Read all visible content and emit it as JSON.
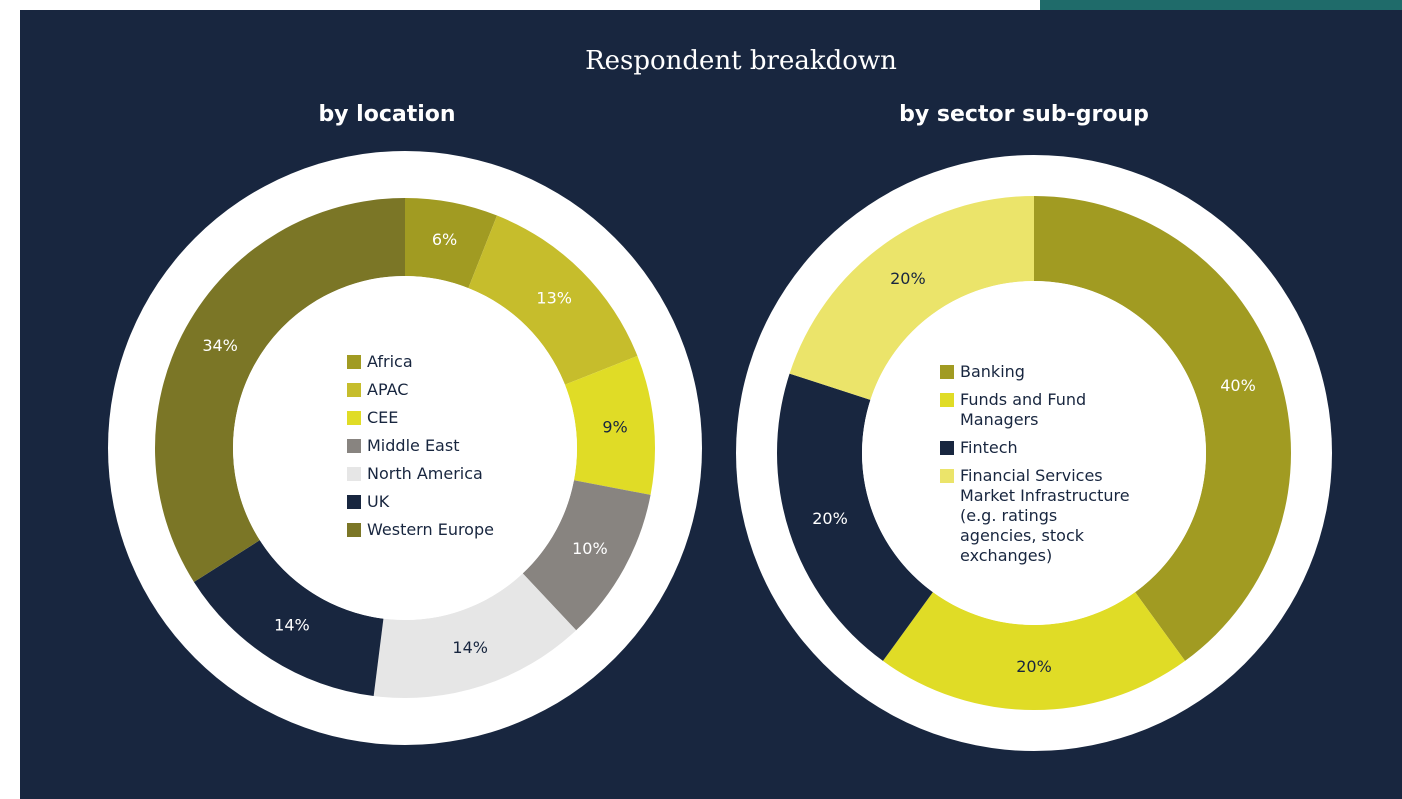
{
  "title": "Respondent breakdown",
  "chart_data": [
    {
      "type": "pie",
      "title": "by location",
      "categories": [
        "Africa",
        "APAC",
        "CEE",
        "Middle East",
        "North America",
        "UK",
        "Western Europe"
      ],
      "values": [
        6,
        13,
        9,
        10,
        14,
        14,
        34
      ],
      "value_labels": [
        "6%",
        "13%",
        "9%",
        "10%",
        "14%",
        "14%",
        "34%"
      ],
      "colors": [
        "#a19b22",
        "#c6bd2c",
        "#e0dc26",
        "#888480",
        "#e6e6e6",
        "#18263f",
        "#7b7626"
      ]
    },
    {
      "type": "pie",
      "title": "by sector sub-group",
      "categories": [
        "Banking",
        "Funds and Fund Managers",
        "Fintech",
        "Financial Services Market Infrastructure (e.g. ratings agencies, stock exchanges)"
      ],
      "values": [
        40,
        20,
        20,
        20
      ],
      "value_labels": [
        "40%",
        "20%",
        "20%",
        "20%"
      ],
      "colors": [
        "#a19b22",
        "#e0dc26",
        "#18263f",
        "#ebe46a"
      ]
    }
  ]
}
